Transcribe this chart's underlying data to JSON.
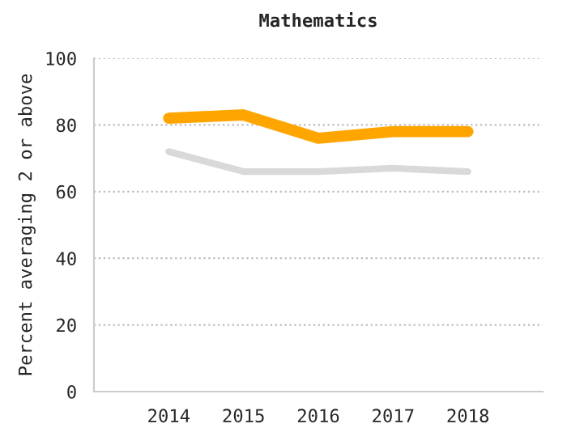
{
  "chart_data": {
    "type": "line",
    "title": "Mathematics",
    "ylabel": "Percent averaging 2 or above",
    "categories": [
      "2014",
      "2015",
      "2016",
      "2017",
      "2018"
    ],
    "series": [
      {
        "color": "#d9d9d9",
        "values": [
          72,
          66,
          66,
          67,
          66
        ]
      },
      {
        "color": "#ffa500",
        "values": [
          82,
          83,
          76,
          78,
          78
        ]
      }
    ],
    "ylim": [
      0,
      100
    ],
    "yticks": [
      0,
      20,
      40,
      60,
      80,
      100
    ],
    "grid": "y",
    "marker": "none",
    "line_style": "solid"
  }
}
